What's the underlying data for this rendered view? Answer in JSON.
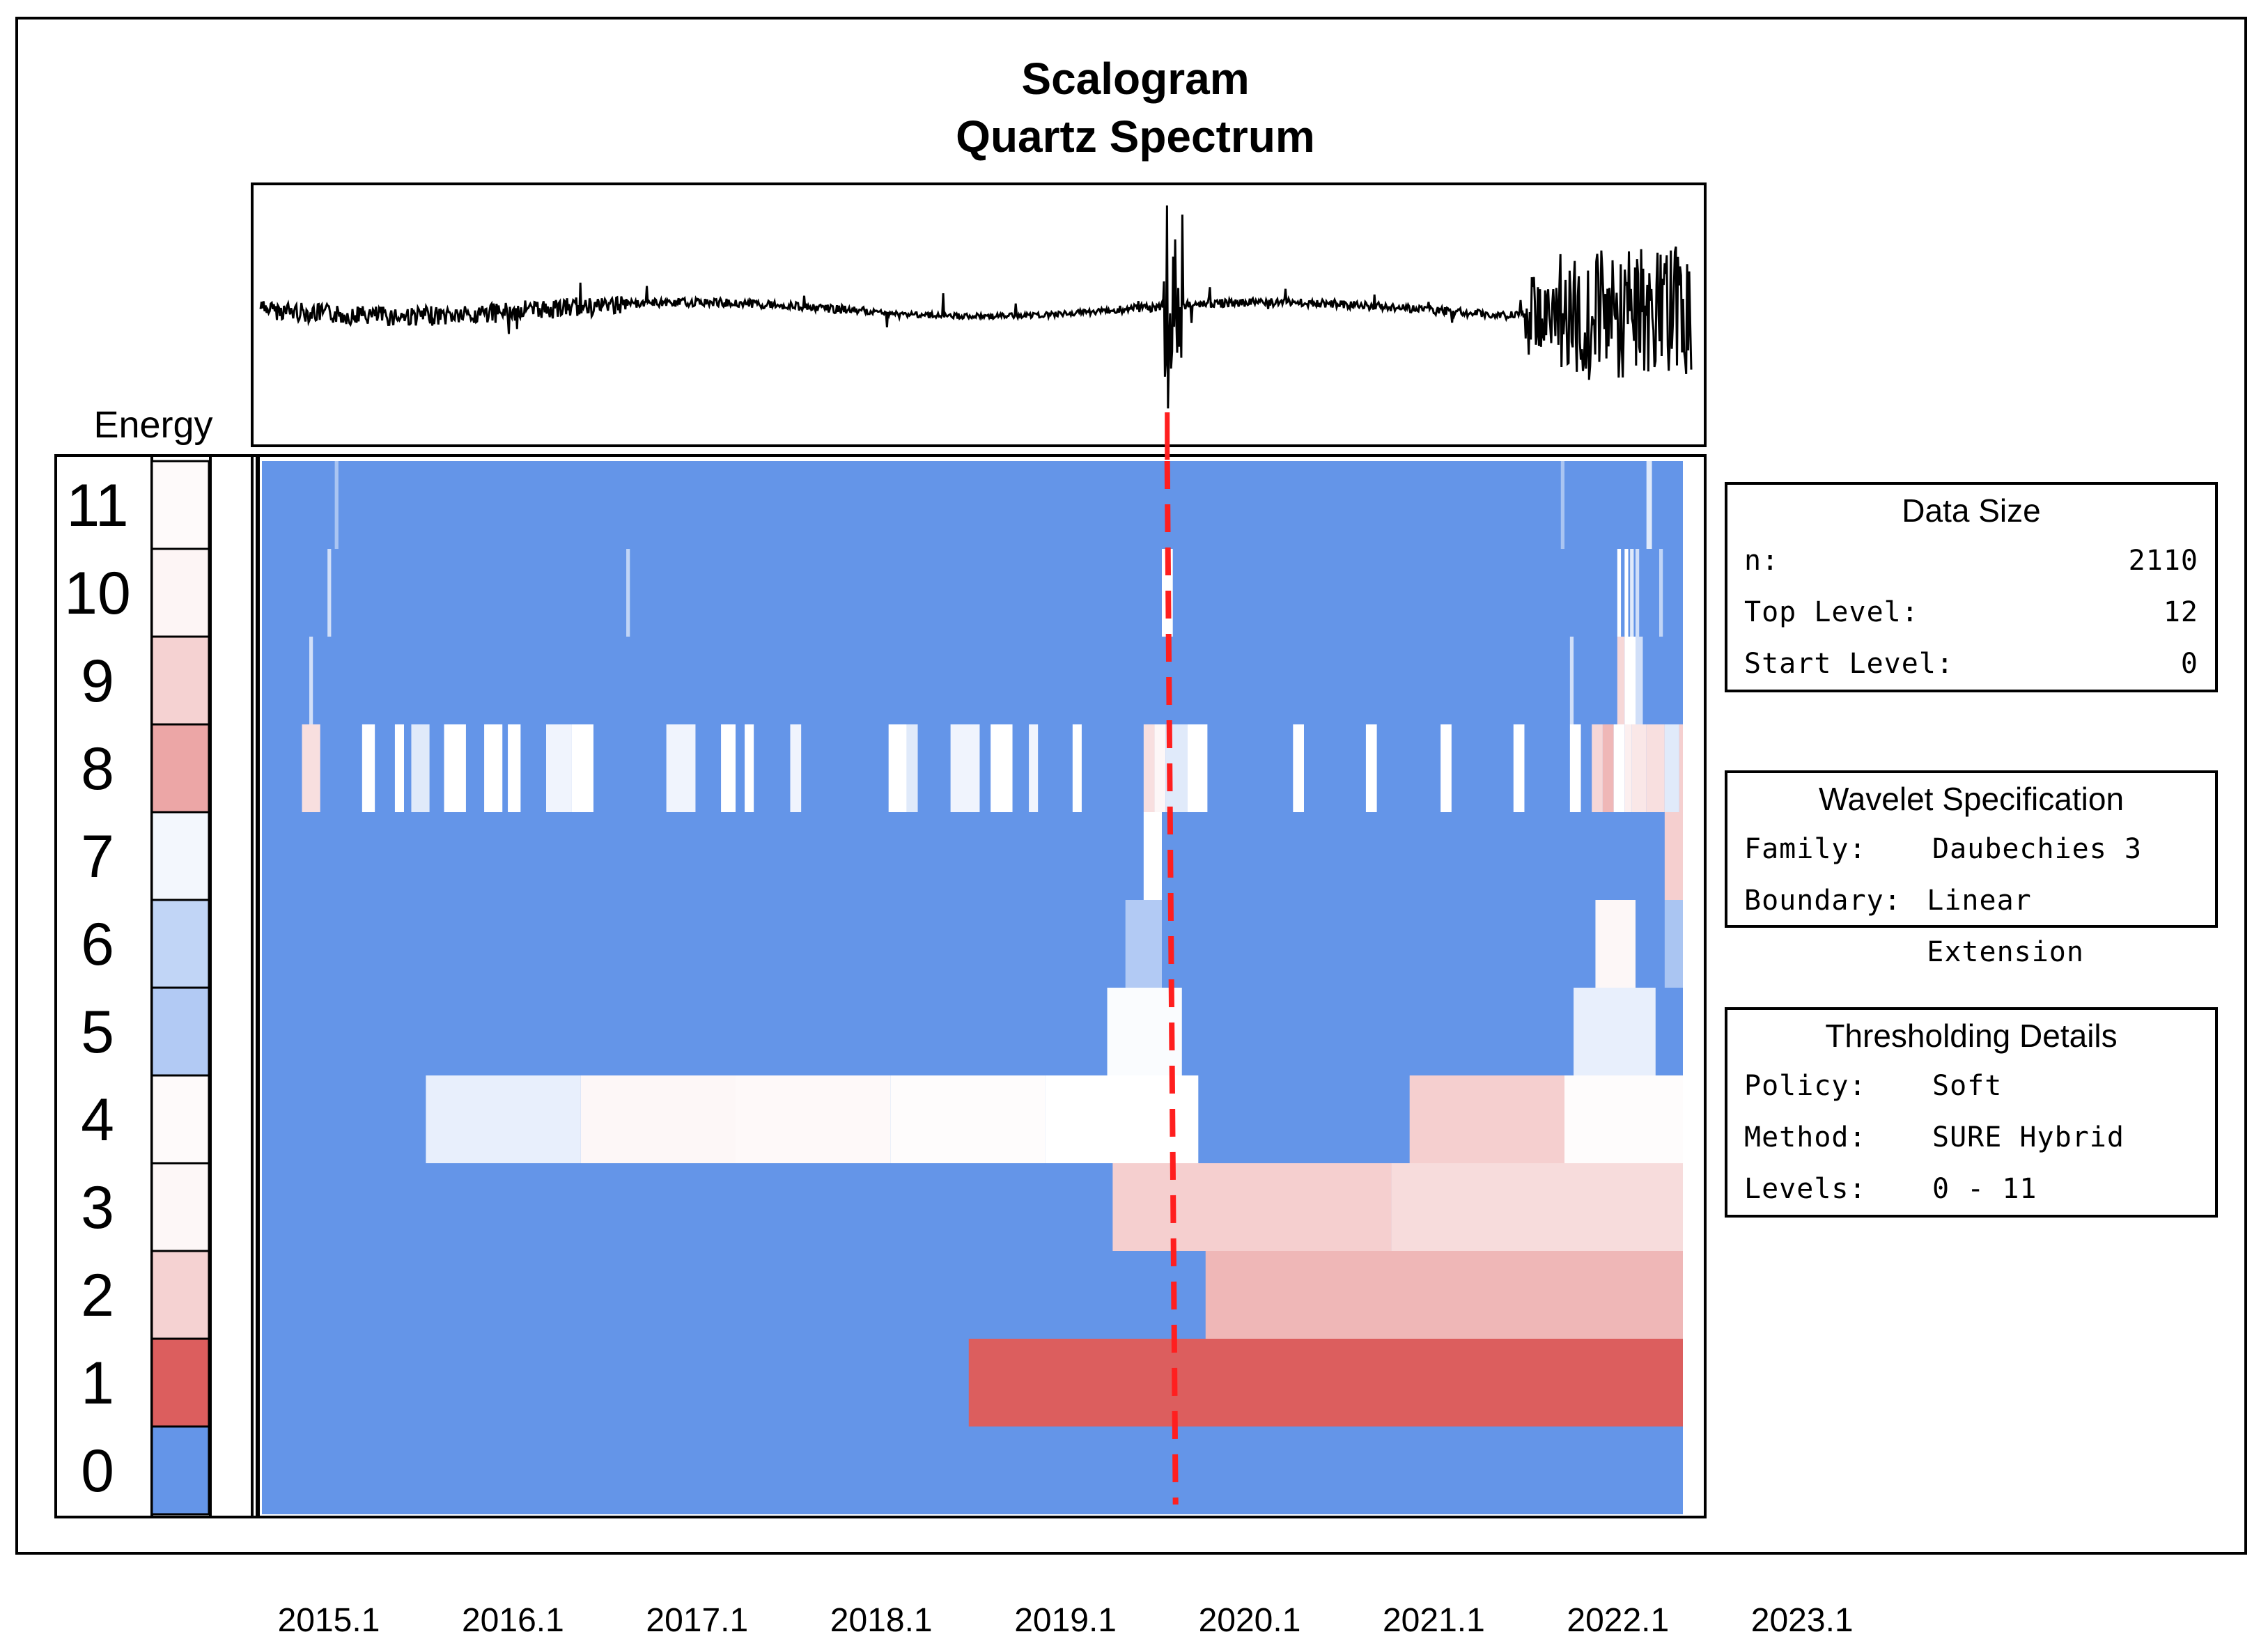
{
  "chart_data": {
    "type": "heatmap",
    "title": "Scalogram",
    "subtitle": "Quartz Spectrum",
    "colors": {
      "blue": "#6495e8",
      "red": "#dc5e5e",
      "white": "#ffffff",
      "dashed_line": "#ff1f1f"
    },
    "x_ticks": [
      "2015.1",
      "2016.1",
      "2017.1",
      "2018.1",
      "2019.1",
      "2020.1",
      "2021.1",
      "2022.1",
      "2023.1"
    ],
    "x_tick_values": [
      2015.1,
      2016.1,
      2017.1,
      2018.1,
      2019.1,
      2020.1,
      2021.1,
      2022.1,
      2023.1
    ],
    "x_range": [
      2014.6,
      2022.4
    ],
    "energy_label": "Energy",
    "levels": [
      11,
      10,
      9,
      8,
      7,
      6,
      5,
      4,
      3,
      2,
      1,
      0
    ],
    "level_energy": [
      {
        "level": 11,
        "value": 0.03
      },
      {
        "level": 10,
        "value": 0.06
      },
      {
        "level": 9,
        "value": 0.28
      },
      {
        "level": 8,
        "value": 0.55
      },
      {
        "level": 7,
        "value": -0.08
      },
      {
        "level": 6,
        "value": -0.4
      },
      {
        "level": 5,
        "value": -0.5
      },
      {
        "level": 4,
        "value": 0.03
      },
      {
        "level": 3,
        "value": 0.05
      },
      {
        "level": 2,
        "value": 0.28
      },
      {
        "level": 1,
        "value": 1.0
      },
      {
        "level": 0,
        "value": -1.0
      }
    ],
    "event_x": 2019.6,
    "cells": [
      {
        "level": 11,
        "x0": 2015.0,
        "x1": 2015.02,
        "v": -0.55
      },
      {
        "level": 11,
        "x0": 2021.73,
        "x1": 2021.75,
        "v": -0.55
      },
      {
        "level": 11,
        "x0": 2022.2,
        "x1": 2022.23,
        "v": -0.2
      },
      {
        "level": 10,
        "x0": 2014.96,
        "x1": 2014.98,
        "v": -0.3
      },
      {
        "level": 10,
        "x0": 2016.6,
        "x1": 2016.62,
        "v": -0.4
      },
      {
        "level": 10,
        "x0": 2019.54,
        "x1": 2019.6,
        "v": 0.0
      },
      {
        "level": 10,
        "x0": 2022.04,
        "x1": 2022.06,
        "v": 0.0
      },
      {
        "level": 10,
        "x0": 2022.08,
        "x1": 2022.1,
        "v": 0.0
      },
      {
        "level": 10,
        "x0": 2022.11,
        "x1": 2022.13,
        "v": -0.2
      },
      {
        "level": 10,
        "x0": 2022.14,
        "x1": 2022.16,
        "v": -0.3
      },
      {
        "level": 10,
        "x0": 2022.27,
        "x1": 2022.29,
        "v": -0.4
      },
      {
        "level": 9,
        "x0": 2014.86,
        "x1": 2014.88,
        "v": -0.3
      },
      {
        "level": 9,
        "x0": 2021.78,
        "x1": 2021.8,
        "v": -0.3
      },
      {
        "level": 9,
        "x0": 2022.04,
        "x1": 2022.08,
        "v": 0.25
      },
      {
        "level": 9,
        "x0": 2022.08,
        "x1": 2022.14,
        "v": 0.0
      },
      {
        "level": 9,
        "x0": 2022.14,
        "x1": 2022.18,
        "v": -0.3
      },
      {
        "level": 8,
        "x0": 2014.82,
        "x1": 2014.92,
        "v": 0.2
      },
      {
        "level": 8,
        "x0": 2015.15,
        "x1": 2015.22,
        "v": 0.0
      },
      {
        "level": 8,
        "x0": 2015.33,
        "x1": 2015.38,
        "v": 0.0
      },
      {
        "level": 8,
        "x0": 2015.42,
        "x1": 2015.52,
        "v": -0.2
      },
      {
        "level": 8,
        "x0": 2015.6,
        "x1": 2015.72,
        "v": 0.0
      },
      {
        "level": 8,
        "x0": 2015.82,
        "x1": 2015.92,
        "v": 0.0
      },
      {
        "level": 8,
        "x0": 2015.95,
        "x1": 2016.02,
        "v": 0.0
      },
      {
        "level": 8,
        "x0": 2016.16,
        "x1": 2016.3,
        "v": -0.1
      },
      {
        "level": 8,
        "x0": 2016.3,
        "x1": 2016.42,
        "v": 0.0
      },
      {
        "level": 8,
        "x0": 2016.82,
        "x1": 2016.98,
        "v": -0.1
      },
      {
        "level": 8,
        "x0": 2017.12,
        "x1": 2017.2,
        "v": 0.0
      },
      {
        "level": 8,
        "x0": 2017.25,
        "x1": 2017.3,
        "v": 0.0
      },
      {
        "level": 8,
        "x0": 2017.5,
        "x1": 2017.56,
        "v": -0.1
      },
      {
        "level": 8,
        "x0": 2018.04,
        "x1": 2018.14,
        "v": 0.0
      },
      {
        "level": 8,
        "x0": 2018.14,
        "x1": 2018.2,
        "v": -0.2
      },
      {
        "level": 8,
        "x0": 2018.38,
        "x1": 2018.54,
        "v": -0.1
      },
      {
        "level": 8,
        "x0": 2018.6,
        "x1": 2018.72,
        "v": 0.0
      },
      {
        "level": 8,
        "x0": 2018.81,
        "x1": 2018.86,
        "v": -0.1
      },
      {
        "level": 8,
        "x0": 2019.05,
        "x1": 2019.1,
        "v": 0.0
      },
      {
        "level": 8,
        "x0": 2019.44,
        "x1": 2019.5,
        "v": 0.2
      },
      {
        "level": 8,
        "x0": 2019.5,
        "x1": 2019.56,
        "v": 0.05
      },
      {
        "level": 8,
        "x0": 2019.56,
        "x1": 2019.68,
        "v": -0.2
      },
      {
        "level": 8,
        "x0": 2019.68,
        "x1": 2019.79,
        "v": 0.0
      },
      {
        "level": 8,
        "x0": 2020.26,
        "x1": 2020.32,
        "v": 0.0
      },
      {
        "level": 8,
        "x0": 2020.66,
        "x1": 2020.72,
        "v": 0.0
      },
      {
        "level": 8,
        "x0": 2021.07,
        "x1": 2021.13,
        "v": 0.0
      },
      {
        "level": 8,
        "x0": 2021.47,
        "x1": 2021.53,
        "v": 0.0
      },
      {
        "level": 8,
        "x0": 2021.78,
        "x1": 2021.84,
        "v": 0.0
      },
      {
        "level": 8,
        "x0": 2021.9,
        "x1": 2021.96,
        "v": 0.25
      },
      {
        "level": 8,
        "x0": 2021.96,
        "x1": 2022.02,
        "v": 0.45
      },
      {
        "level": 8,
        "x0": 2022.02,
        "x1": 2022.08,
        "v": 0.0
      },
      {
        "level": 8,
        "x0": 2022.08,
        "x1": 2022.12,
        "v": 0.1
      },
      {
        "level": 8,
        "x0": 2022.12,
        "x1": 2022.2,
        "v": 0.15
      },
      {
        "level": 8,
        "x0": 2022.2,
        "x1": 2022.3,
        "v": 0.2
      },
      {
        "level": 8,
        "x0": 2022.3,
        "x1": 2022.38,
        "v": -0.2
      },
      {
        "level": 8,
        "x0": 2022.38,
        "x1": 2022.4,
        "v": 0.3
      },
      {
        "level": 7,
        "x0": 2019.44,
        "x1": 2019.54,
        "v": 0.0
      },
      {
        "level": 7,
        "x0": 2022.3,
        "x1": 2022.4,
        "v": 0.3
      },
      {
        "level": 7,
        "x0": 2022.4,
        "x1": 2022.4,
        "v": 0.0
      },
      {
        "level": 6,
        "x0": 2019.34,
        "x1": 2019.54,
        "v": -0.5
      },
      {
        "level": 6,
        "x0": 2021.92,
        "x1": 2022.14,
        "v": 0.05
      },
      {
        "level": 6,
        "x0": 2022.3,
        "x1": 2022.4,
        "v": -0.55
      },
      {
        "level": 5,
        "x0": 2019.24,
        "x1": 2019.65,
        "v": -0.03
      },
      {
        "level": 5,
        "x0": 2021.8,
        "x1": 2022.25,
        "v": -0.15
      },
      {
        "level": 4,
        "x0": 2015.5,
        "x1": 2016.35,
        "v": -0.15
      },
      {
        "level": 4,
        "x0": 2016.35,
        "x1": 2017.2,
        "v": 0.05
      },
      {
        "level": 4,
        "x0": 2017.2,
        "x1": 2018.05,
        "v": 0.04
      },
      {
        "level": 4,
        "x0": 2018.05,
        "x1": 2018.9,
        "v": 0.02
      },
      {
        "level": 4,
        "x0": 2018.9,
        "x1": 2019.74,
        "v": 0.0
      },
      {
        "level": 4,
        "x0": 2020.9,
        "x1": 2021.75,
        "v": 0.3
      },
      {
        "level": 4,
        "x0": 2021.75,
        "x1": 2022.4,
        "v": 0.02
      },
      {
        "level": 3,
        "x0": 2019.27,
        "x1": 2020.8,
        "v": 0.3
      },
      {
        "level": 3,
        "x0": 2020.8,
        "x1": 2022.4,
        "v": 0.22
      },
      {
        "level": 2,
        "x0": 2019.78,
        "x1": 2022.4,
        "v": 0.45
      },
      {
        "level": 1,
        "x0": 2018.48,
        "x1": 2022.4,
        "v": 1.0
      }
    ],
    "signal": {
      "description_y_units": "relative amplitude",
      "y_range": [
        -1.0,
        1.0
      ]
    }
  },
  "panels": {
    "data_size": {
      "title": "Data Size",
      "rows": [
        {
          "key": "n:",
          "value": "2110"
        },
        {
          "key": "Top Level:",
          "value": "12"
        },
        {
          "key": "Start Level:",
          "value": "0"
        }
      ]
    },
    "wavelet": {
      "title": "Wavelet Specification",
      "rows": [
        {
          "key": "Family:",
          "value": "Daubechies 3"
        },
        {
          "key": "Boundary:",
          "value": "Linear Extension"
        }
      ]
    },
    "thresholding": {
      "title": "Thresholding Details",
      "rows": [
        {
          "key": "Policy:",
          "value": "Soft"
        },
        {
          "key": "Method:",
          "value": "SURE Hybrid"
        },
        {
          "key": "Levels:",
          "value": "0 - 11"
        }
      ]
    }
  }
}
